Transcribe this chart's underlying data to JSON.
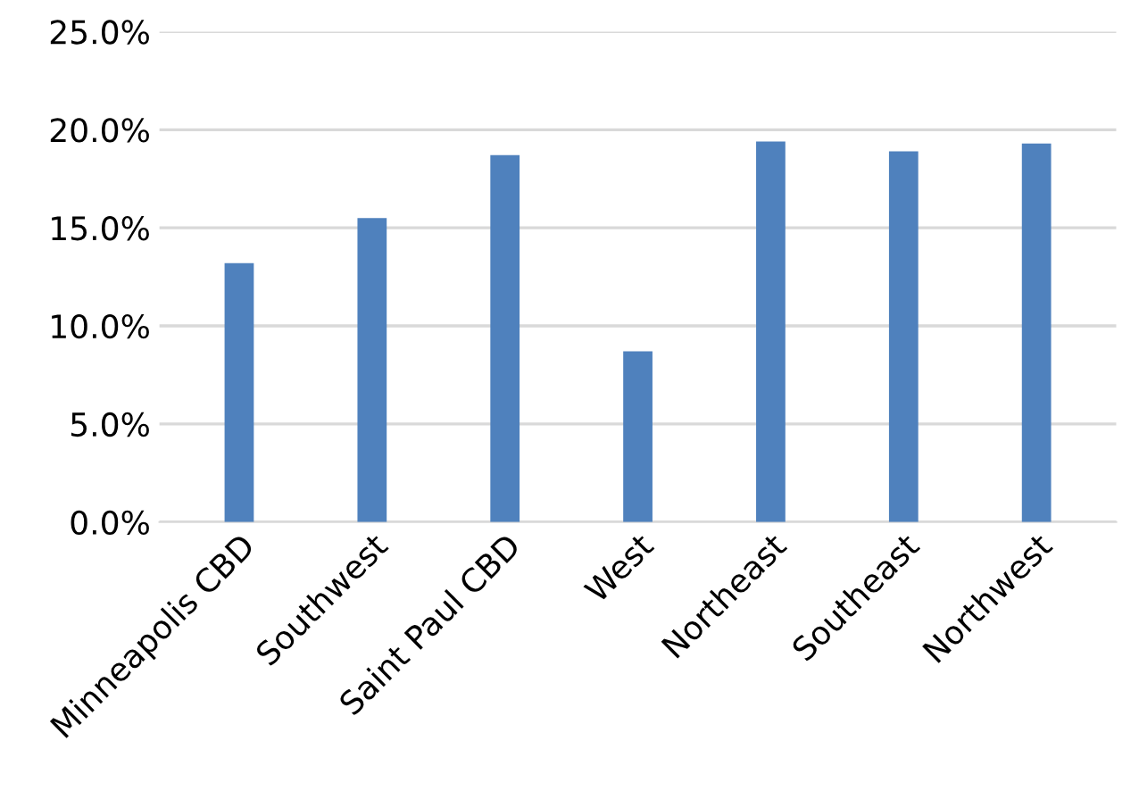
{
  "chart_data": {
    "type": "bar",
    "categories": [
      "Minneapolis CBD",
      "Southwest",
      "Saint Paul CBD",
      "West",
      "Northeast",
      "Southeast",
      "Northwest"
    ],
    "values": [
      13.2,
      15.5,
      18.7,
      8.7,
      19.4,
      18.9,
      19.3
    ],
    "color": "#4f81bd",
    "ylim": [
      0,
      25
    ],
    "yticks": [
      {
        "value": 0,
        "label": "0.0%"
      },
      {
        "value": 5,
        "label": "5.0%"
      },
      {
        "value": 10,
        "label": "10.0%"
      },
      {
        "value": 15,
        "label": "15.0%"
      },
      {
        "value": 20,
        "label": "20.0%"
      },
      {
        "value": 25,
        "label": "25.0%"
      }
    ],
    "grid": "y"
  }
}
